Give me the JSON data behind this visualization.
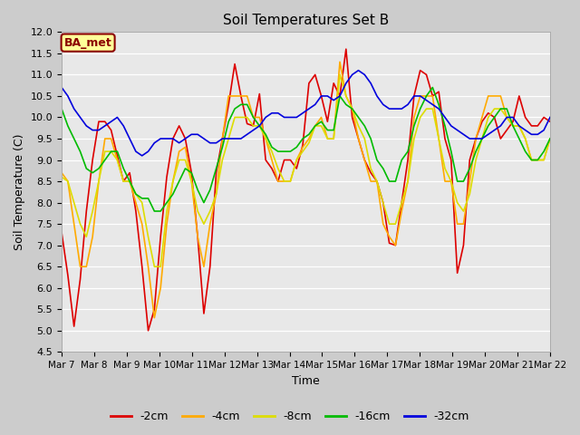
{
  "title": "Soil Temperatures Set B",
  "xlabel": "Time",
  "ylabel": "Soil Temperature (C)",
  "ylim": [
    4.5,
    12.0
  ],
  "yticks": [
    4.5,
    5.0,
    5.5,
    6.0,
    6.5,
    7.0,
    7.5,
    8.0,
    8.5,
    9.0,
    9.5,
    10.0,
    10.5,
    11.0,
    11.5,
    12.0
  ],
  "x_labels": [
    "Mar 7",
    "Mar 8",
    "Mar 9",
    "Mar 10",
    "Mar 11",
    "Mar 12",
    "Mar 13",
    "Mar 14",
    "Mar 15",
    "Mar 16",
    "Mar 17",
    "Mar 18",
    "Mar 19",
    "Mar 20",
    "Mar 21",
    "Mar 22"
  ],
  "colors": {
    "-2cm": "#dd0000",
    "-4cm": "#ffaa00",
    "-8cm": "#dddd00",
    "-16cm": "#00bb00",
    "-32cm": "#0000dd"
  },
  "legend_label": "BA_met",
  "fig_bg": "#cccccc",
  "plot_bg": "#e8e8e8",
  "grid_color": "#ffffff",
  "series": {
    "-2cm": [
      7.3,
      6.3,
      5.1,
      6.2,
      7.8,
      9.0,
      9.9,
      9.9,
      9.7,
      9.1,
      8.5,
      8.7,
      7.8,
      6.5,
      5.0,
      5.5,
      7.2,
      8.6,
      9.5,
      9.8,
      9.5,
      8.7,
      7.2,
      5.4,
      6.5,
      8.7,
      9.5,
      10.3,
      11.25,
      10.5,
      9.85,
      9.8,
      10.55,
      9.0,
      8.8,
      8.5,
      9.0,
      9.0,
      8.8,
      9.35,
      10.8,
      11.0,
      10.5,
      9.9,
      10.8,
      10.5,
      11.6,
      10.0,
      9.5,
      9.0,
      8.7,
      8.5,
      8.0,
      7.05,
      7.0,
      8.0,
      9.0,
      10.5,
      11.1,
      11.0,
      10.5,
      10.6,
      9.5,
      9.0,
      6.35,
      7.0,
      9.0,
      9.5,
      9.9,
      10.1,
      10.0,
      9.5,
      9.7,
      9.9,
      10.5,
      10.0,
      9.8,
      9.8,
      10.0,
      9.9
    ],
    "-4cm": [
      8.7,
      8.5,
      7.5,
      6.5,
      6.5,
      7.2,
      8.5,
      9.5,
      9.5,
      9.0,
      8.5,
      8.5,
      8.0,
      7.5,
      6.5,
      5.3,
      6.0,
      7.5,
      8.5,
      9.2,
      9.3,
      8.5,
      7.2,
      6.5,
      7.5,
      8.2,
      9.5,
      10.5,
      10.5,
      10.5,
      10.5,
      10.0,
      10.0,
      9.5,
      9.0,
      8.5,
      8.5,
      8.5,
      9.0,
      9.3,
      9.5,
      9.8,
      10.0,
      9.5,
      9.5,
      11.3,
      10.5,
      10.2,
      9.5,
      9.0,
      8.5,
      8.5,
      7.5,
      7.2,
      7.0,
      7.8,
      8.5,
      10.0,
      10.5,
      10.5,
      10.5,
      9.5,
      8.5,
      8.5,
      7.5,
      7.5,
      8.5,
      9.5,
      10.0,
      10.5,
      10.5,
      10.5,
      10.0,
      9.8,
      9.8,
      9.5,
      9.0,
      9.0,
      9.0,
      9.5
    ],
    "-8cm": [
      8.6,
      8.5,
      8.0,
      7.5,
      7.2,
      7.8,
      8.5,
      9.2,
      9.2,
      9.0,
      8.5,
      8.5,
      8.2,
      8.0,
      7.2,
      6.5,
      6.5,
      7.8,
      8.5,
      9.0,
      9.0,
      8.5,
      7.8,
      7.5,
      7.8,
      8.2,
      9.0,
      9.5,
      10.0,
      10.0,
      10.0,
      9.8,
      9.8,
      9.5,
      9.2,
      8.8,
      8.5,
      8.5,
      9.0,
      9.2,
      9.4,
      9.8,
      9.8,
      9.5,
      9.5,
      11.0,
      10.5,
      10.2,
      9.8,
      9.5,
      8.8,
      8.5,
      8.0,
      7.5,
      7.5,
      8.0,
      8.5,
      9.5,
      10.0,
      10.2,
      10.2,
      9.5,
      8.8,
      8.5,
      8.0,
      7.8,
      8.2,
      9.0,
      9.5,
      10.0,
      10.2,
      10.2,
      10.0,
      9.8,
      9.8,
      9.5,
      9.0,
      9.0,
      9.0,
      9.5
    ],
    "-16cm": [
      10.2,
      9.8,
      9.5,
      9.2,
      8.8,
      8.7,
      8.8,
      9.0,
      9.2,
      9.2,
      8.8,
      8.5,
      8.2,
      8.1,
      8.1,
      7.8,
      7.8,
      8.0,
      8.2,
      8.5,
      8.8,
      8.7,
      8.3,
      8.0,
      8.3,
      8.8,
      9.3,
      9.9,
      10.2,
      10.3,
      10.3,
      10.0,
      9.8,
      9.6,
      9.3,
      9.2,
      9.2,
      9.2,
      9.3,
      9.5,
      9.6,
      9.8,
      9.9,
      9.7,
      9.7,
      10.5,
      10.3,
      10.2,
      10.0,
      9.8,
      9.5,
      9.0,
      8.8,
      8.5,
      8.5,
      9.0,
      9.2,
      9.8,
      10.2,
      10.5,
      10.7,
      10.3,
      9.8,
      9.2,
      8.5,
      8.5,
      8.8,
      9.2,
      9.5,
      9.8,
      10.0,
      10.2,
      10.2,
      9.8,
      9.5,
      9.2,
      9.0,
      9.0,
      9.2,
      9.5
    ],
    "-32cm": [
      10.7,
      10.5,
      10.2,
      10.0,
      9.8,
      9.7,
      9.7,
      9.8,
      9.9,
      10.0,
      9.8,
      9.5,
      9.2,
      9.1,
      9.2,
      9.4,
      9.5,
      9.5,
      9.5,
      9.4,
      9.5,
      9.6,
      9.6,
      9.5,
      9.4,
      9.4,
      9.5,
      9.5,
      9.5,
      9.5,
      9.6,
      9.7,
      9.8,
      10.0,
      10.1,
      10.1,
      10.0,
      10.0,
      10.0,
      10.1,
      10.2,
      10.3,
      10.5,
      10.5,
      10.4,
      10.5,
      10.8,
      11.0,
      11.1,
      11.0,
      10.8,
      10.5,
      10.3,
      10.2,
      10.2,
      10.2,
      10.3,
      10.5,
      10.5,
      10.4,
      10.3,
      10.2,
      10.0,
      9.8,
      9.7,
      9.6,
      9.5,
      9.5,
      9.5,
      9.6,
      9.7,
      9.8,
      10.0,
      10.0,
      9.8,
      9.7,
      9.6,
      9.6,
      9.7,
      10.0
    ]
  }
}
